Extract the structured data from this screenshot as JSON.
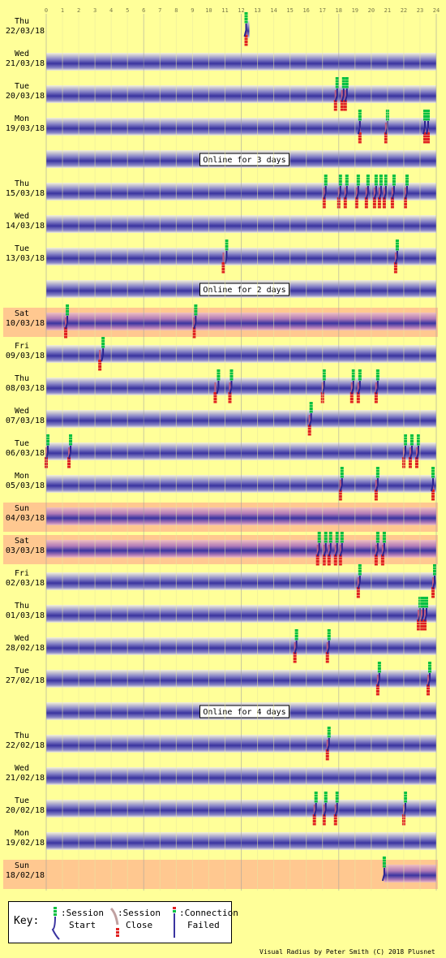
{
  "chart_data": {
    "type": "timeline",
    "x_ticks": [
      "0",
      "1",
      "2",
      "3",
      "4",
      "5",
      "6",
      "7",
      "8",
      "9",
      "10",
      "11",
      "12",
      "13",
      "14",
      "15",
      "16",
      "17",
      "18",
      "19",
      "20",
      "21",
      "22",
      "23",
      "24"
    ],
    "xlim": [
      0,
      24
    ],
    "rows": [
      {
        "kind": "day",
        "day": "Thu",
        "date": "22/03/18",
        "start": [
          12.3
        ],
        "close": [
          12.3
        ],
        "failed": [],
        "online": [
          [
            12.3,
            12.5
          ]
        ],
        "weekend": false
      },
      {
        "kind": "day",
        "day": "Wed",
        "date": "21/03/18",
        "start": [],
        "close": [],
        "failed": [],
        "online": [
          [
            0,
            24
          ]
        ],
        "weekend": false
      },
      {
        "kind": "day",
        "day": "Tue",
        "date": "20/03/18",
        "start": [
          17.9,
          18.3,
          18.5
        ],
        "close": [
          17.8,
          18.2,
          18.4
        ],
        "failed": [],
        "online": [
          [
            0,
            24
          ]
        ],
        "weekend": false
      },
      {
        "kind": "day",
        "day": "Mon",
        "date": "19/03/18",
        "start": [
          19.3,
          21.0,
          23.3,
          23.5
        ],
        "close": [
          19.3,
          20.9,
          23.3,
          23.5
        ],
        "failed": [],
        "online": [
          [
            0,
            24
          ]
        ],
        "weekend": false
      },
      {
        "kind": "banner",
        "text": "Online for 3 days"
      },
      {
        "kind": "day",
        "day": "Thu",
        "date": "15/03/18",
        "start": [
          17.2,
          18.1,
          18.5,
          19.2,
          19.8,
          20.3,
          20.6,
          20.9,
          21.4,
          22.2
        ],
        "close": [
          17.1,
          18.0,
          18.4,
          19.1,
          19.7,
          20.2,
          20.5,
          20.8,
          21.3,
          22.1
        ],
        "failed": [],
        "online": [
          [
            0,
            24
          ]
        ],
        "weekend": false
      },
      {
        "kind": "day",
        "day": "Wed",
        "date": "14/03/18",
        "start": [],
        "close": [],
        "failed": [],
        "online": [
          [
            0,
            24
          ]
        ],
        "weekend": false
      },
      {
        "kind": "day",
        "day": "Tue",
        "date": "13/03/18",
        "start": [
          11.1,
          21.6
        ],
        "close": [
          10.9,
          21.5
        ],
        "failed": [],
        "online": [
          [
            0,
            24
          ]
        ],
        "weekend": false
      },
      {
        "kind": "banner",
        "text": "Online for 2 days"
      },
      {
        "kind": "day",
        "day": "Sat",
        "date": "10/03/18",
        "start": [
          1.3,
          9.2
        ],
        "close": [
          1.2,
          9.1
        ],
        "failed": [],
        "online": [
          [
            0,
            24
          ]
        ],
        "weekend": true
      },
      {
        "kind": "day",
        "day": "Fri",
        "date": "09/03/18",
        "start": [
          3.5
        ],
        "close": [
          3.3
        ],
        "failed": [],
        "online": [
          [
            0,
            24
          ]
        ],
        "weekend": false
      },
      {
        "kind": "day",
        "day": "Thu",
        "date": "08/03/18",
        "start": [
          10.6,
          11.4,
          17.1,
          18.9,
          19.3,
          20.4
        ],
        "close": [
          10.4,
          11.3,
          17.0,
          18.8,
          19.2,
          20.3
        ],
        "failed": [],
        "online": [
          [
            0,
            24
          ]
        ],
        "weekend": false
      },
      {
        "kind": "day",
        "day": "Wed",
        "date": "07/03/18",
        "start": [
          16.3
        ],
        "close": [
          16.2
        ],
        "failed": [],
        "online": [
          [
            0,
            24
          ]
        ],
        "weekend": false
      },
      {
        "kind": "day",
        "day": "Tue",
        "date": "06/03/18",
        "start": [
          0.1,
          1.5,
          22.1,
          22.5,
          22.9
        ],
        "close": [
          0.0,
          1.4,
          22.0,
          22.4,
          22.8
        ],
        "failed": [],
        "online": [
          [
            0,
            24
          ]
        ],
        "weekend": false
      },
      {
        "kind": "day",
        "day": "Mon",
        "date": "05/03/18",
        "start": [
          18.2,
          20.4,
          23.8
        ],
        "close": [
          18.1,
          20.3,
          23.8
        ],
        "failed": [],
        "online": [
          [
            0,
            24
          ]
        ],
        "weekend": false
      },
      {
        "kind": "day",
        "day": "Sun",
        "date": "04/03/18",
        "start": [],
        "close": [],
        "failed": [],
        "online": [
          [
            0,
            24
          ]
        ],
        "weekend": true
      },
      {
        "kind": "day",
        "day": "Sat",
        "date": "03/03/18",
        "start": [
          16.8,
          17.2,
          17.5,
          17.9,
          18.2,
          20.4,
          20.8
        ],
        "close": [
          16.7,
          17.1,
          17.4,
          17.8,
          18.1,
          20.3,
          20.7
        ],
        "failed": [],
        "online": [
          [
            0,
            24
          ]
        ],
        "weekend": true
      },
      {
        "kind": "day",
        "day": "Fri",
        "date": "02/03/18",
        "start": [
          19.3,
          23.9
        ],
        "close": [
          19.2,
          23.8
        ],
        "failed": [],
        "online": [
          [
            0,
            24
          ]
        ],
        "weekend": false
      },
      {
        "kind": "day",
        "day": "Thu",
        "date": "01/03/18",
        "start": [
          23.0,
          23.2,
          23.4
        ],
        "close": [
          22.9,
          23.1,
          23.3
        ],
        "failed": [],
        "online": [
          [
            0,
            24
          ]
        ],
        "weekend": false
      },
      {
        "kind": "day",
        "day": "Wed",
        "date": "28/02/18",
        "start": [
          15.4,
          17.4
        ],
        "close": [
          15.3,
          17.3
        ],
        "failed": [],
        "online": [
          [
            0,
            24
          ]
        ],
        "weekend": false
      },
      {
        "kind": "day",
        "day": "Tue",
        "date": "27/02/18",
        "start": [
          20.5,
          23.6
        ],
        "close": [
          20.4,
          23.5
        ],
        "failed": [],
        "online": [
          [
            0,
            24
          ]
        ],
        "weekend": false
      },
      {
        "kind": "banner",
        "text": "Online for 4 days"
      },
      {
        "kind": "day",
        "day": "Thu",
        "date": "22/02/18",
        "start": [
          17.4
        ],
        "close": [
          17.3
        ],
        "failed": [],
        "online": [
          [
            0,
            24
          ]
        ],
        "weekend": false
      },
      {
        "kind": "day",
        "day": "Wed",
        "date": "21/02/18",
        "start": [],
        "close": [],
        "failed": [],
        "online": [
          [
            0,
            24
          ]
        ],
        "weekend": false
      },
      {
        "kind": "day",
        "day": "Tue",
        "date": "20/02/18",
        "start": [
          16.6,
          17.2,
          17.9,
          22.1
        ],
        "close": [
          16.5,
          17.1,
          17.8,
          22.0
        ],
        "failed": [],
        "online": [
          [
            0,
            24
          ]
        ],
        "weekend": false
      },
      {
        "kind": "day",
        "day": "Mon",
        "date": "19/02/18",
        "start": [],
        "close": [],
        "failed": [],
        "online": [
          [
            0,
            24
          ]
        ],
        "weekend": false
      },
      {
        "kind": "day",
        "day": "Sun",
        "date": "18/02/18",
        "start": [
          20.8
        ],
        "close": [],
        "failed": [],
        "online": [
          [
            20.8,
            24
          ]
        ],
        "weekend": true
      }
    ]
  },
  "key": {
    "label": "Key:",
    "start_line1": ":Session",
    "start_line2": "Start",
    "close_line1": ":Session",
    "close_line2": "Close",
    "failed_line1": ":Connection",
    "failed_line2": "Failed"
  },
  "footer": "Visual Radius by Peter Smith (C) 2018 Plusnet",
  "colors": {
    "background": "#ffff99",
    "weekend": "#ffc890",
    "online_dark": "#3a34a0",
    "online_light": "#f2f0d0",
    "start_green": "#00c040",
    "close_red": "#e02020"
  }
}
